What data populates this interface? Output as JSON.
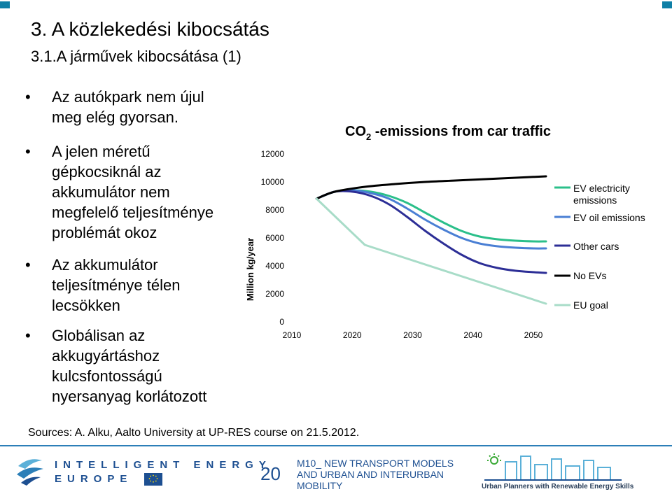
{
  "slide": {
    "title": "3. A közlekedési kibocsátás",
    "subtitle": "3.1.A járművek kibocsátása (1)",
    "bullets": [
      "Az autókpark nem újul meg elég gyorsan.",
      "A jelen méretű gépkocsiknál az akkumulátor nem megfelelő teljesítménye problémát okoz",
      "Az akkumulátor teljesítménye télen lecsökken",
      "Globálisan az akkugyártáshoz kulcsfontosságú nyersanyag korlátozott"
    ],
    "sources": "Sources: A. Alku, Aalto University at UP-RES course on 21.5.2012."
  },
  "footer": {
    "ie_line1": "INTELLIGENT ENERGY",
    "ie_line2": "EUROPE",
    "page_number": "20",
    "module_title": "M10_ NEW TRANSPORT MODELS AND URBAN AND INTERURBAN MOBILITY",
    "upres_caption": "Urban Planners with Renewable Energy Skills",
    "colors": {
      "blue": "#1d4f91",
      "light_blue": "#5bb0d8",
      "green": "#39a935"
    }
  },
  "chart_data": {
    "type": "line",
    "title_prefix": "CO",
    "title_sub": "2",
    "title_suffix": " -emissions from car traffic",
    "xlabel": "",
    "ylabel": "Million kg/year",
    "xlim": [
      2010,
      2050
    ],
    "ylim": [
      0,
      12000
    ],
    "x_ticks": [
      "2010",
      "2020",
      "2030",
      "2040",
      "2050"
    ],
    "y_ticks": [
      "0",
      "2000",
      "4000",
      "6000",
      "8000",
      "10000",
      "12000"
    ],
    "grid": false,
    "legend_position": "right",
    "series": [
      {
        "name": "EV electricity emissions",
        "color": "#2bbf8a",
        "x": [
          2012,
          2015,
          2018,
          2021,
          2024,
          2027,
          2030,
          2033,
          2036,
          2039,
          2042,
          2045,
          2048,
          2050
        ],
        "y": [
          8800,
          9300,
          9400,
          9300,
          9000,
          8500,
          7800,
          7100,
          6500,
          6100,
          5900,
          5800,
          5750,
          5750
        ]
      },
      {
        "name": "EV oil emissions",
        "color": "#4a7fd4",
        "x": [
          2012,
          2015,
          2018,
          2021,
          2024,
          2027,
          2030,
          2033,
          2036,
          2039,
          2042,
          2045,
          2048,
          2050
        ],
        "y": [
          8800,
          9300,
          9400,
          9200,
          8800,
          8100,
          7300,
          6600,
          6000,
          5600,
          5400,
          5300,
          5250,
          5250
        ]
      },
      {
        "name": "Other cars",
        "color": "#2c2e96",
        "x": [
          2012,
          2015,
          2018,
          2021,
          2024,
          2027,
          2030,
          2033,
          2036,
          2039,
          2042,
          2045,
          2048,
          2050
        ],
        "y": [
          8800,
          9300,
          9300,
          9000,
          8400,
          7500,
          6500,
          5600,
          4800,
          4200,
          3850,
          3650,
          3550,
          3500
        ]
      },
      {
        "name": "No EVs",
        "color": "#000000",
        "x": [
          2012,
          2015,
          2020,
          2025,
          2030,
          2035,
          2040,
          2045,
          2050
        ],
        "y": [
          8800,
          9300,
          9650,
          9850,
          10000,
          10100,
          10200,
          10300,
          10400
        ]
      },
      {
        "name": "EU goal",
        "color": "#a8dcc8",
        "x": [
          2012,
          2020,
          2050
        ],
        "y": [
          8800,
          5500,
          1300
        ]
      }
    ]
  }
}
